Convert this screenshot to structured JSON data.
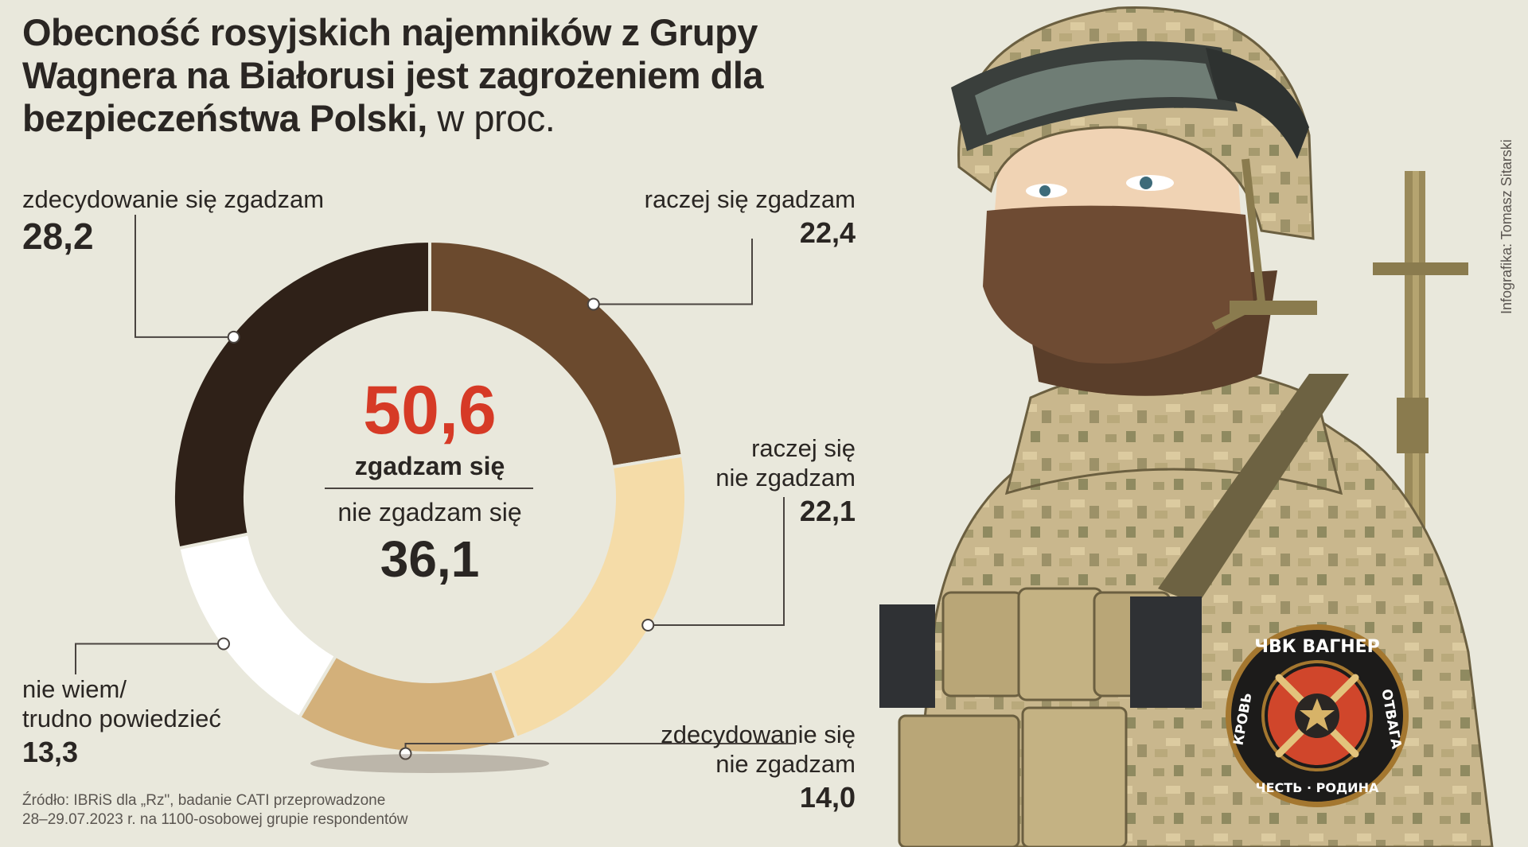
{
  "title": {
    "main": "Obecność rosyjskich najemników z Grupy Wagnera na Białorusi jest zagrożeniem dla bezpieczeństwa Polski,",
    "unit": "w proc."
  },
  "chart_data": {
    "type": "pie",
    "donut": true,
    "slices": [
      {
        "label": "raczej się zgadzam",
        "value": 22.4,
        "value_text": "22,4",
        "color": "#6b4a2e"
      },
      {
        "label": "raczej się nie zgadzam",
        "value": 22.1,
        "value_text": "22,1",
        "color": "#f5dca8"
      },
      {
        "label": "zdecydowanie się nie zgadzam",
        "value": 14.0,
        "value_text": "14,0",
        "color": "#d3b07a"
      },
      {
        "label": "nie wiem/ trudno powiedzieć",
        "value": 13.3,
        "value_text": "13,3",
        "color": "#ffffff"
      },
      {
        "label": "zdecydowanie się zgadzam",
        "value": 28.2,
        "value_text": "28,2",
        "color": "#2f2118"
      }
    ],
    "center": {
      "agree_value": "50,6",
      "agree_label": "zgadzam się",
      "disagree_label": "nie zgadzam się",
      "disagree_value": "36,1",
      "agree_color": "#d63a26"
    }
  },
  "labels": {
    "strongly_agree": {
      "name": "zdecydowanie się zgadzam",
      "value": "28,2"
    },
    "rather_agree": {
      "name": "raczej się zgadzam",
      "value": "22,4"
    },
    "rather_disagree": {
      "name1": "raczej się",
      "name2": "nie zgadzam",
      "value": "22,1"
    },
    "strongly_disagree": {
      "name1": "zdecydowanie się",
      "name2": "nie zgadzam",
      "value": "14,0"
    },
    "dont_know": {
      "name1": "nie wiem/",
      "name2": "trudno powiedzieć",
      "value": "13,3"
    }
  },
  "source": {
    "line1": "Źródło: IBRiS dla „Rz\", badanie CATI przeprowadzone",
    "line2": "28–29.07.2023 r. na 1100-osobowej grupie respondentów"
  },
  "credit": "Infografika: Tomasz Sitarski",
  "badge": {
    "top": "ЧВК ВАГНЕР",
    "left": "КРОВЬ",
    "right": "ОТВАГА",
    "bottom": "ЧЕСТЬ · РОДИНА"
  }
}
